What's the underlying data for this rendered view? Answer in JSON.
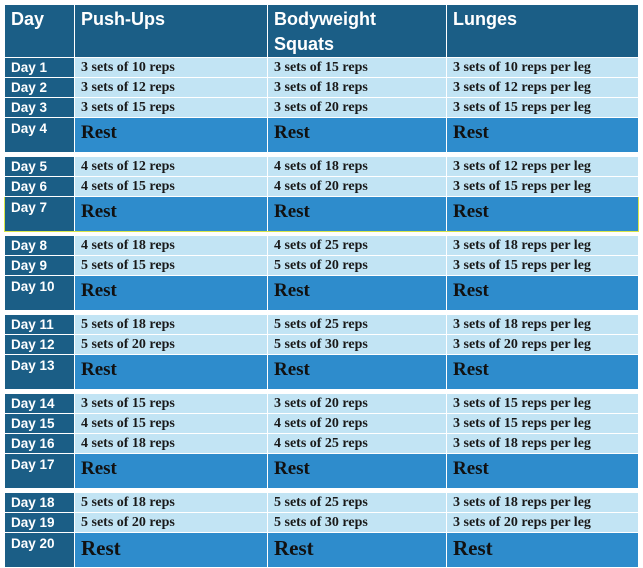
{
  "headers": [
    "Day",
    "Push-Ups",
    "Bodyweight Squats",
    "Lunges"
  ],
  "rows": [
    {
      "type": "work",
      "day": "Day 1",
      "pushups": "3 sets of 10 reps",
      "squats": "3 sets of 15 reps",
      "lunges": "3 sets of 10 reps per leg"
    },
    {
      "type": "work",
      "day": "Day 2",
      "pushups": "3 sets of 12 reps",
      "squats": "3 sets of 18 reps",
      "lunges": "3 sets of 12 reps per leg"
    },
    {
      "type": "work",
      "day": "Day 3",
      "pushups": "3 sets of 15 reps",
      "squats": "3 sets of 20 reps",
      "lunges": "3 sets of 15 reps per leg"
    },
    {
      "type": "rest",
      "day": "Day 4",
      "pushups": "Rest",
      "squats": "Rest",
      "lunges": "Rest"
    },
    {
      "type": "gap"
    },
    {
      "type": "work",
      "day": "Day 5",
      "pushups": "4 sets of 12 reps",
      "squats": "4 sets of 18 reps",
      "lunges": "3 sets of 12 reps per leg"
    },
    {
      "type": "work",
      "day": "Day 6",
      "pushups": "4 sets of 15 reps",
      "squats": "4 sets of 20 reps",
      "lunges": "3 sets of 15 reps per leg"
    },
    {
      "type": "rest",
      "day": "Day 7",
      "pushups": "Rest",
      "squats": "Rest",
      "lunges": "Rest",
      "selected": true
    },
    {
      "type": "gap"
    },
    {
      "type": "work",
      "day": "Day 8",
      "pushups": "4 sets of 18 reps",
      "squats": "4 sets of 25 reps",
      "lunges": "3 sets of 18 reps per leg"
    },
    {
      "type": "work",
      "day": "Day 9",
      "pushups": "5 sets of 15 reps",
      "squats": "5 sets of 20 reps",
      "lunges": "3 sets of 15 reps per leg"
    },
    {
      "type": "rest",
      "day": "Day 10",
      "pushups": "Rest",
      "squats": "Rest",
      "lunges": "Rest"
    },
    {
      "type": "gap"
    },
    {
      "type": "work",
      "day": "Day 11",
      "pushups": "5 sets of 18 reps",
      "squats": "5 sets of 25 reps",
      "lunges": "3 sets of 18 reps per leg"
    },
    {
      "type": "work",
      "day": "Day 12",
      "pushups": "5 sets of 20 reps",
      "squats": "5 sets of 30 reps",
      "lunges": "3 sets of 20 reps per leg"
    },
    {
      "type": "rest",
      "day": "Day 13",
      "pushups": "Rest",
      "squats": "Rest",
      "lunges": "Rest"
    },
    {
      "type": "gap"
    },
    {
      "type": "work",
      "day": "Day 14",
      "pushups": "3 sets of 15 reps",
      "squats": "3 sets of 20 reps",
      "lunges": "3 sets of 15 reps per leg"
    },
    {
      "type": "work",
      "day": "Day 15",
      "pushups": "4 sets of 15 reps",
      "squats": "4 sets of 20 reps",
      "lunges": "3 sets of 15 reps per leg"
    },
    {
      "type": "work",
      "day": "Day 16",
      "pushups": "4 sets of 18 reps",
      "squats": "4 sets of 25 reps",
      "lunges": "3 sets of 18 reps per leg"
    },
    {
      "type": "rest",
      "day": "Day 17",
      "pushups": "Rest",
      "squats": "Rest",
      "lunges": "Rest"
    },
    {
      "type": "gap"
    },
    {
      "type": "work",
      "day": "Day 18",
      "pushups": "5 sets of 18 reps",
      "squats": "5 sets of 25 reps",
      "lunges": "3 sets of 18 reps per leg"
    },
    {
      "type": "work",
      "day": "Day 19",
      "pushups": "5 sets of 20 reps",
      "squats": "5 sets of 30 reps",
      "lunges": "3 sets of 20 reps per leg"
    },
    {
      "type": "rest",
      "day": "Day 20",
      "pushups": "Rest",
      "squats": "Rest",
      "lunges": "Rest",
      "last": true
    }
  ],
  "colors": {
    "header_bg": "#1b5e86",
    "work_bg": "#c2e4f4",
    "rest_bg": "#2e8ccc",
    "selection_border": "#d9e64a"
  }
}
